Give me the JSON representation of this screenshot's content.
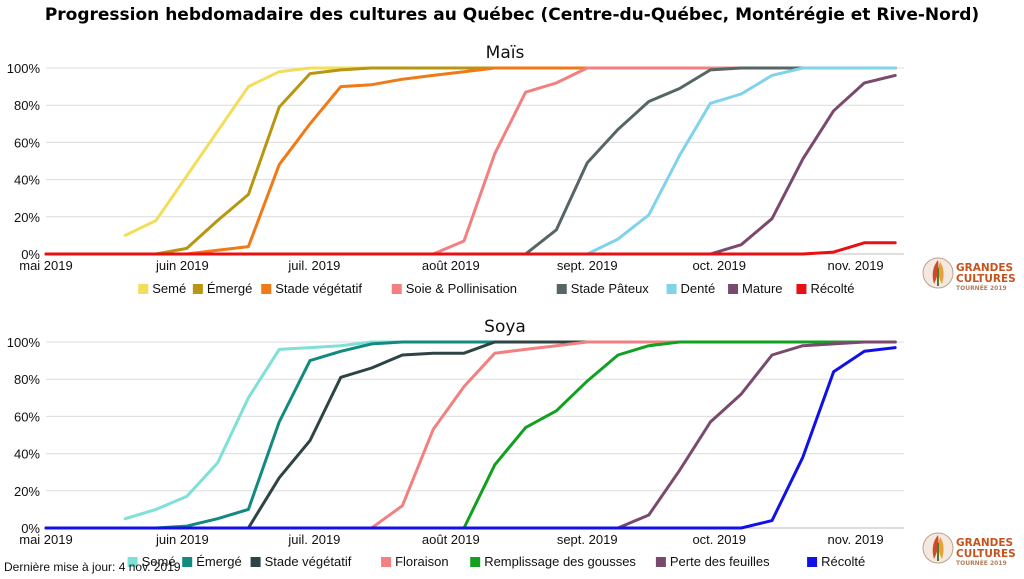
{
  "title": "Progression hebdomadaire des cultures au Québec (Centre-du-Québec, Montérégie et Rive-Nord)",
  "footer": "Dernière mise à jour: 4 nov. 2019",
  "logo": {
    "line1": "GRANDES",
    "line2": "CULTURES",
    "line3": "TOURNÉE 2019",
    "icon": "wheat-leaf-icon"
  },
  "chart_data": [
    {
      "type": "line",
      "title": "Maïs",
      "xlim": [
        "2019-05-01",
        "2019-11-12"
      ],
      "ylim": [
        0,
        100
      ],
      "y_ticks": [
        "0%",
        "20%",
        "40%",
        "60%",
        "80%",
        "100%"
      ],
      "x_ticks": [
        {
          "label": "mai 2019",
          "date": "2019-05-01"
        },
        {
          "label": "juin 2019",
          "date": "2019-06-01"
        },
        {
          "label": "juil. 2019",
          "date": "2019-07-01"
        },
        {
          "label": "août 2019",
          "date": "2019-08-01"
        },
        {
          "label": "sept. 2019",
          "date": "2019-09-01"
        },
        {
          "label": "oct. 2019",
          "date": "2019-10-01"
        },
        {
          "label": "nov. 2019",
          "date": "2019-11-01"
        }
      ],
      "grid": true,
      "legend": "bottom",
      "series": [
        {
          "name": "Semé",
          "color": "#f2de5a",
          "points": [
            [
              "2019-05-19",
              10
            ],
            [
              "2019-05-26",
              18
            ],
            [
              "2019-06-02",
              42
            ],
            [
              "2019-06-09",
              66
            ],
            [
              "2019-06-16",
              90
            ],
            [
              "2019-06-23",
              98
            ],
            [
              "2019-06-30",
              100
            ],
            [
              "2019-07-07",
              100
            ],
            [
              "2019-11-10",
              100
            ]
          ]
        },
        {
          "name": "Émergé",
          "color": "#b8960f",
          "points": [
            [
              "2019-05-01",
              0
            ],
            [
              "2019-05-26",
              0
            ],
            [
              "2019-06-02",
              3
            ],
            [
              "2019-06-09",
              18
            ],
            [
              "2019-06-16",
              32
            ],
            [
              "2019-06-23",
              79
            ],
            [
              "2019-06-30",
              97
            ],
            [
              "2019-07-07",
              99
            ],
            [
              "2019-07-14",
              100
            ],
            [
              "2019-11-10",
              100
            ]
          ]
        },
        {
          "name": "Stade végétatif",
          "color": "#f07a18",
          "points": [
            [
              "2019-05-01",
              0
            ],
            [
              "2019-06-02",
              0
            ],
            [
              "2019-06-09",
              2
            ],
            [
              "2019-06-16",
              4
            ],
            [
              "2019-06-23",
              48
            ],
            [
              "2019-06-30",
              70
            ],
            [
              "2019-07-07",
              90
            ],
            [
              "2019-07-14",
              91
            ],
            [
              "2019-07-21",
              94
            ],
            [
              "2019-07-28",
              96
            ],
            [
              "2019-08-04",
              98
            ],
            [
              "2019-08-11",
              100
            ],
            [
              "2019-11-10",
              100
            ]
          ]
        },
        {
          "name": "Soie & Pollinisation",
          "color": "#f28080",
          "points": [
            [
              "2019-05-01",
              0
            ],
            [
              "2019-07-28",
              0
            ],
            [
              "2019-08-04",
              7
            ],
            [
              "2019-08-11",
              54
            ],
            [
              "2019-08-18",
              87
            ],
            [
              "2019-08-25",
              92
            ],
            [
              "2019-09-01",
              100
            ],
            [
              "2019-11-10",
              100
            ]
          ]
        },
        {
          "name": "Stade Pâteux",
          "color": "#566565",
          "points": [
            [
              "2019-05-01",
              0
            ],
            [
              "2019-08-18",
              0
            ],
            [
              "2019-08-25",
              13
            ],
            [
              "2019-09-01",
              49
            ],
            [
              "2019-09-08",
              67
            ],
            [
              "2019-09-15",
              82
            ],
            [
              "2019-09-22",
              89
            ],
            [
              "2019-09-29",
              99
            ],
            [
              "2019-10-06",
              100
            ],
            [
              "2019-11-10",
              100
            ]
          ]
        },
        {
          "name": "Denté",
          "color": "#7fd3ea",
          "points": [
            [
              "2019-05-01",
              0
            ],
            [
              "2019-09-01",
              0
            ],
            [
              "2019-09-08",
              8
            ],
            [
              "2019-09-15",
              21
            ],
            [
              "2019-09-22",
              53
            ],
            [
              "2019-09-29",
              81
            ],
            [
              "2019-10-06",
              86
            ],
            [
              "2019-10-13",
              96
            ],
            [
              "2019-10-20",
              100
            ],
            [
              "2019-11-10",
              100
            ]
          ]
        },
        {
          "name": "Mature",
          "color": "#7a4a6e",
          "points": [
            [
              "2019-05-01",
              0
            ],
            [
              "2019-09-29",
              0
            ],
            [
              "2019-10-06",
              5
            ],
            [
              "2019-10-13",
              19
            ],
            [
              "2019-10-20",
              51
            ],
            [
              "2019-10-27",
              77
            ],
            [
              "2019-11-03",
              92
            ],
            [
              "2019-11-10",
              96
            ]
          ]
        },
        {
          "name": "Récolté",
          "color": "#e81010",
          "points": [
            [
              "2019-05-01",
              0
            ],
            [
              "2019-10-20",
              0
            ],
            [
              "2019-10-27",
              1
            ],
            [
              "2019-11-03",
              6
            ],
            [
              "2019-11-10",
              6
            ]
          ]
        }
      ]
    },
    {
      "type": "line",
      "title": "Soya",
      "xlim": [
        "2019-05-01",
        "2019-11-12"
      ],
      "ylim": [
        0,
        100
      ],
      "y_ticks": [
        "0%",
        "20%",
        "40%",
        "60%",
        "80%",
        "100%"
      ],
      "x_ticks": [
        {
          "label": "mai 2019",
          "date": "2019-05-01"
        },
        {
          "label": "juin 2019",
          "date": "2019-06-01"
        },
        {
          "label": "juil. 2019",
          "date": "2019-07-01"
        },
        {
          "label": "août 2019",
          "date": "2019-08-01"
        },
        {
          "label": "sept. 2019",
          "date": "2019-09-01"
        },
        {
          "label": "oct. 2019",
          "date": "2019-10-01"
        },
        {
          "label": "nov. 2019",
          "date": "2019-11-01"
        }
      ],
      "grid": true,
      "legend": "bottom",
      "series": [
        {
          "name": "Semé",
          "color": "#7fe0d8",
          "points": [
            [
              "2019-05-19",
              5
            ],
            [
              "2019-05-26",
              10
            ],
            [
              "2019-06-02",
              17
            ],
            [
              "2019-06-09",
              35
            ],
            [
              "2019-06-16",
              70
            ],
            [
              "2019-06-23",
              96
            ],
            [
              "2019-06-30",
              97
            ],
            [
              "2019-07-07",
              98
            ],
            [
              "2019-07-14",
              100
            ],
            [
              "2019-11-10",
              100
            ]
          ]
        },
        {
          "name": "Émergé",
          "color": "#138a80",
          "points": [
            [
              "2019-05-01",
              0
            ],
            [
              "2019-05-26",
              0
            ],
            [
              "2019-06-02",
              1
            ],
            [
              "2019-06-09",
              5
            ],
            [
              "2019-06-16",
              10
            ],
            [
              "2019-06-23",
              57
            ],
            [
              "2019-06-30",
              90
            ],
            [
              "2019-07-07",
              95
            ],
            [
              "2019-07-14",
              99
            ],
            [
              "2019-07-21",
              100
            ],
            [
              "2019-11-10",
              100
            ]
          ]
        },
        {
          "name": "Stade végétatif",
          "color": "#2e4444",
          "points": [
            [
              "2019-05-01",
              0
            ],
            [
              "2019-06-16",
              0
            ],
            [
              "2019-06-23",
              27
            ],
            [
              "2019-06-30",
              47
            ],
            [
              "2019-07-07",
              81
            ],
            [
              "2019-07-14",
              86
            ],
            [
              "2019-07-21",
              93
            ],
            [
              "2019-07-28",
              94
            ],
            [
              "2019-08-04",
              94
            ],
            [
              "2019-08-11",
              100
            ],
            [
              "2019-11-10",
              100
            ]
          ]
        },
        {
          "name": "Floraison",
          "color": "#f28080",
          "points": [
            [
              "2019-05-01",
              0
            ],
            [
              "2019-07-14",
              0
            ],
            [
              "2019-07-21",
              12
            ],
            [
              "2019-07-28",
              53
            ],
            [
              "2019-08-04",
              76
            ],
            [
              "2019-08-11",
              94
            ],
            [
              "2019-08-18",
              96
            ],
            [
              "2019-08-25",
              98
            ],
            [
              "2019-09-01",
              100
            ],
            [
              "2019-11-10",
              100
            ]
          ]
        },
        {
          "name": "Remplissage des gousses",
          "color": "#12a020",
          "points": [
            [
              "2019-05-01",
              0
            ],
            [
              "2019-08-04",
              0
            ],
            [
              "2019-08-11",
              34
            ],
            [
              "2019-08-18",
              54
            ],
            [
              "2019-08-25",
              63
            ],
            [
              "2019-09-01",
              79
            ],
            [
              "2019-09-08",
              93
            ],
            [
              "2019-09-15",
              98
            ],
            [
              "2019-09-22",
              100
            ],
            [
              "2019-11-10",
              100
            ]
          ]
        },
        {
          "name": "Perte des feuilles",
          "color": "#7a4a6e",
          "points": [
            [
              "2019-05-01",
              0
            ],
            [
              "2019-09-08",
              0
            ],
            [
              "2019-09-15",
              7
            ],
            [
              "2019-09-22",
              31
            ],
            [
              "2019-09-29",
              57
            ],
            [
              "2019-10-06",
              72
            ],
            [
              "2019-10-13",
              93
            ],
            [
              "2019-10-20",
              98
            ],
            [
              "2019-10-27",
              99
            ],
            [
              "2019-11-03",
              100
            ],
            [
              "2019-11-10",
              100
            ]
          ]
        },
        {
          "name": "Récolté",
          "color": "#1010e8",
          "points": [
            [
              "2019-05-01",
              0
            ],
            [
              "2019-10-06",
              0
            ],
            [
              "2019-10-13",
              4
            ],
            [
              "2019-10-20",
              38
            ],
            [
              "2019-10-27",
              84
            ],
            [
              "2019-11-03",
              95
            ],
            [
              "2019-11-10",
              97
            ]
          ]
        }
      ]
    }
  ]
}
